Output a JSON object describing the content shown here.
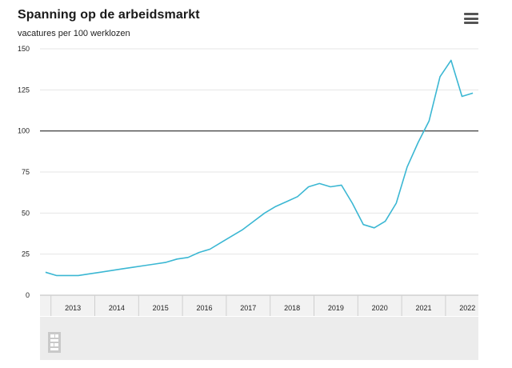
{
  "chart_data": {
    "type": "line",
    "title": "Spanning op de arbeidsmarkt",
    "subtitle": "vacatures per 100 werklozen",
    "ylim": [
      0,
      150
    ],
    "y_ticks": [
      "0",
      "25",
      "50",
      "75",
      "100",
      "125",
      "150"
    ],
    "reference_line": 100,
    "x_start": 2012.75,
    "x_end": 2022.75,
    "year_labels": [
      "2013",
      "2014",
      "2015",
      "2016",
      "2017",
      "2018",
      "2019",
      "2020",
      "2021",
      "2022"
    ],
    "grid": true,
    "series": [
      {
        "color": "#3bb7d3",
        "x": [
          2012.875,
          2013.125,
          2013.375,
          2013.625,
          2013.875,
          2014.125,
          2014.375,
          2014.625,
          2014.875,
          2015.125,
          2015.375,
          2015.625,
          2015.875,
          2016.125,
          2016.375,
          2016.625,
          2016.875,
          2017.125,
          2017.375,
          2017.625,
          2017.875,
          2018.125,
          2018.375,
          2018.625,
          2018.875,
          2019.125,
          2019.375,
          2019.625,
          2019.875,
          2020.125,
          2020.375,
          2020.625,
          2020.875,
          2021.125,
          2021.375,
          2021.625,
          2021.875,
          2022.125,
          2022.375,
          2022.625
        ],
        "values": [
          14,
          12,
          12,
          12,
          13,
          14,
          15,
          16,
          17,
          18,
          19,
          20,
          22,
          23,
          26,
          28,
          32,
          36,
          40,
          45,
          50,
          54,
          57,
          60,
          66,
          68,
          66,
          67,
          56,
          43,
          41,
          45,
          56,
          78,
          93,
          106,
          133,
          143,
          121,
          123
        ]
      }
    ]
  },
  "menu_icon": "hamburger-menu-icon",
  "logo_icon": "cbs-logo-icon"
}
